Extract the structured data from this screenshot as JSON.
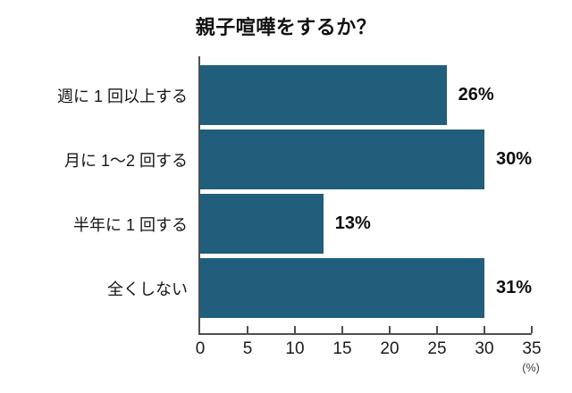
{
  "title": "親子喧嘩をするか？",
  "chart_data": {
    "type": "bar",
    "orientation": "horizontal",
    "title": "親子喧嘩をするか？",
    "categories": [
      "週に 1 回以上する",
      "月に 1〜2 回する",
      "半年に 1 回する",
      "全くしない"
    ],
    "values": [
      26,
      30,
      13,
      31
    ],
    "value_labels": [
      "26%",
      "30%",
      "13%",
      "31%"
    ],
    "xlabel": "(%)",
    "xlim": [
      0,
      35
    ],
    "xticks": [
      "0",
      "5",
      "10",
      "15",
      "20",
      "25",
      "30",
      "35"
    ],
    "grid": "off",
    "legend": "none",
    "bar_color": "#205e7c",
    "axis_color": "#4f4f4f"
  }
}
